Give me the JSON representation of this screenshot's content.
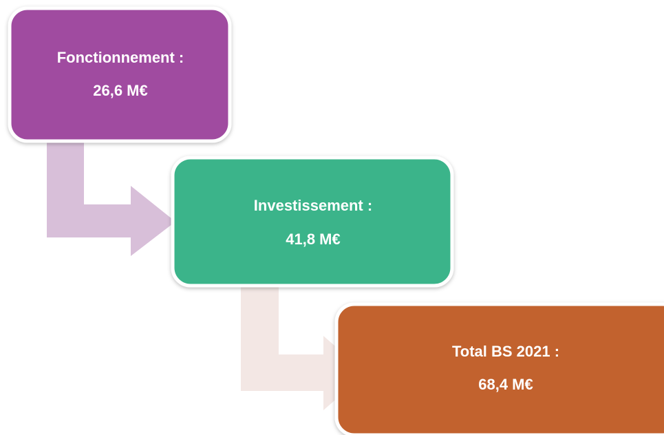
{
  "nodes": [
    {
      "label": "Fonctionnement :",
      "value": "26,6 M€"
    },
    {
      "label": "Investissement :",
      "value": "41,8 M€"
    },
    {
      "label": "Total BS 2021 :",
      "value": "68,4 M€"
    }
  ]
}
